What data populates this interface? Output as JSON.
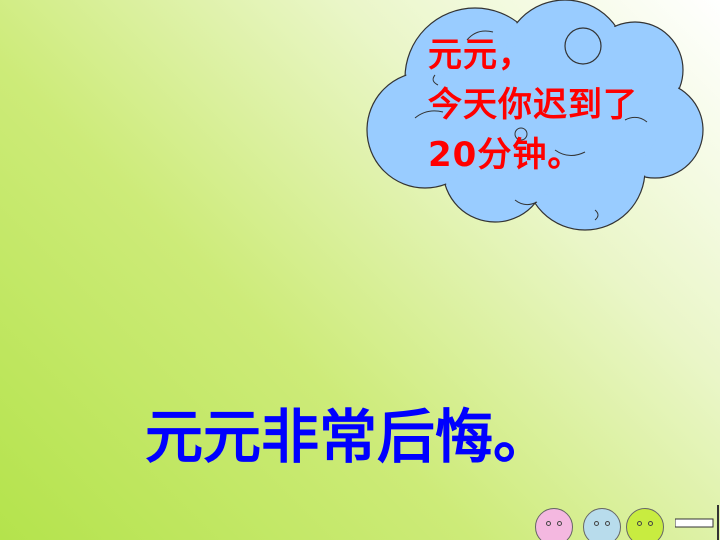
{
  "bubble": {
    "lines": [
      "元元，",
      "今天你迟到了",
      "20分钟。"
    ]
  },
  "caption": "元元非常后悔。",
  "colors": {
    "bubble_text": "#ff0000",
    "caption_text": "#0000ff",
    "cloud_fill": "#99ccff",
    "face_pink": "#f4b8e0",
    "face_blue": "#b8dcec",
    "face_green": "#c8ec40"
  },
  "icons": [
    "smiley-face-icon",
    "smiley-face-icon",
    "smiley-face-icon",
    "nav-arrow-icon"
  ]
}
